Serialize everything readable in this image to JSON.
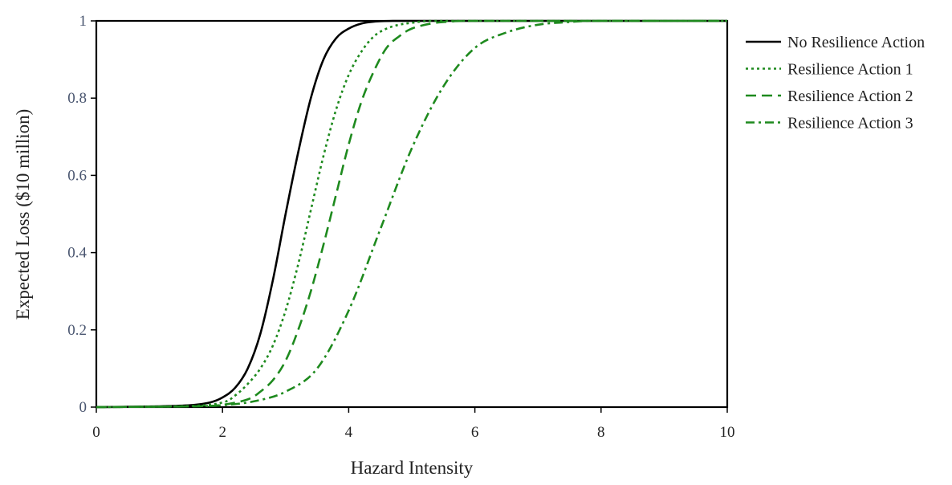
{
  "chart_data": {
    "type": "line",
    "title": "",
    "xlabel": "Hazard Intensity",
    "ylabel": "Expected Loss ($10 million)",
    "xlim": [
      0,
      10
    ],
    "ylim": [
      0,
      1
    ],
    "x_ticks": [
      0,
      2,
      4,
      6,
      8,
      10
    ],
    "x_tick_labels": [
      "0",
      "2",
      "4",
      "6",
      "8",
      "10"
    ],
    "y_ticks": [
      0,
      0.2,
      0.4,
      0.6,
      0.8,
      1
    ],
    "y_tick_labels": [
      "0",
      "0.2",
      "0.4",
      "0.6",
      "0.8",
      "1"
    ],
    "grid": false,
    "legend_position": "right",
    "series": [
      {
        "name": "No Resilience Action",
        "color": "#000000",
        "line_style": "solid",
        "x": [
          0,
          1,
          1.5,
          1.8,
          2,
          2.2,
          2.4,
          2.6,
          2.8,
          3,
          3.2,
          3.4,
          3.6,
          3.8,
          4,
          4.2,
          4.4,
          4.7,
          5,
          6,
          8,
          10
        ],
        "y": [
          0,
          0.002,
          0.005,
          0.012,
          0.025,
          0.05,
          0.1,
          0.19,
          0.33,
          0.5,
          0.66,
          0.8,
          0.9,
          0.955,
          0.98,
          0.993,
          0.998,
          1,
          1,
          1,
          1,
          1
        ]
      },
      {
        "name": "Resilience Action 1",
        "color": "#1e8a1e",
        "line_style": "dotted",
        "x": [
          0,
          1.5,
          2,
          2.2,
          2.4,
          2.6,
          2.8,
          3,
          3.2,
          3.4,
          3.6,
          3.8,
          4,
          4.2,
          4.4,
          4.6,
          4.8,
          5,
          5.3,
          6,
          8,
          10
        ],
        "y": [
          0,
          0.003,
          0.012,
          0.03,
          0.06,
          0.1,
          0.16,
          0.25,
          0.37,
          0.51,
          0.65,
          0.77,
          0.86,
          0.92,
          0.96,
          0.98,
          0.99,
          0.995,
          1,
          1,
          1,
          1
        ]
      },
      {
        "name": "Resilience Action 2",
        "color": "#1e8a1e",
        "line_style": "dashed",
        "x": [
          0,
          1.5,
          2,
          2.4,
          2.6,
          2.8,
          3,
          3.2,
          3.4,
          3.6,
          3.8,
          4,
          4.2,
          4.4,
          4.6,
          4.8,
          5,
          5.3,
          5.6,
          6,
          8,
          10
        ],
        "y": [
          0,
          0.002,
          0.006,
          0.02,
          0.04,
          0.07,
          0.12,
          0.2,
          0.3,
          0.42,
          0.55,
          0.68,
          0.79,
          0.87,
          0.93,
          0.96,
          0.98,
          0.993,
          0.998,
          1,
          1,
          1
        ]
      },
      {
        "name": "Resilience Action 3",
        "color": "#1e8a1e",
        "line_style": "dashdot",
        "x": [
          0,
          1.5,
          2,
          2.5,
          3,
          3.5,
          4,
          4.5,
          5,
          5.5,
          6,
          6.5,
          7,
          7.5,
          8,
          10
        ],
        "y": [
          0,
          0.002,
          0.005,
          0.015,
          0.04,
          0.1,
          0.25,
          0.46,
          0.67,
          0.83,
          0.93,
          0.97,
          0.99,
          0.997,
          1,
          1
        ]
      }
    ]
  }
}
